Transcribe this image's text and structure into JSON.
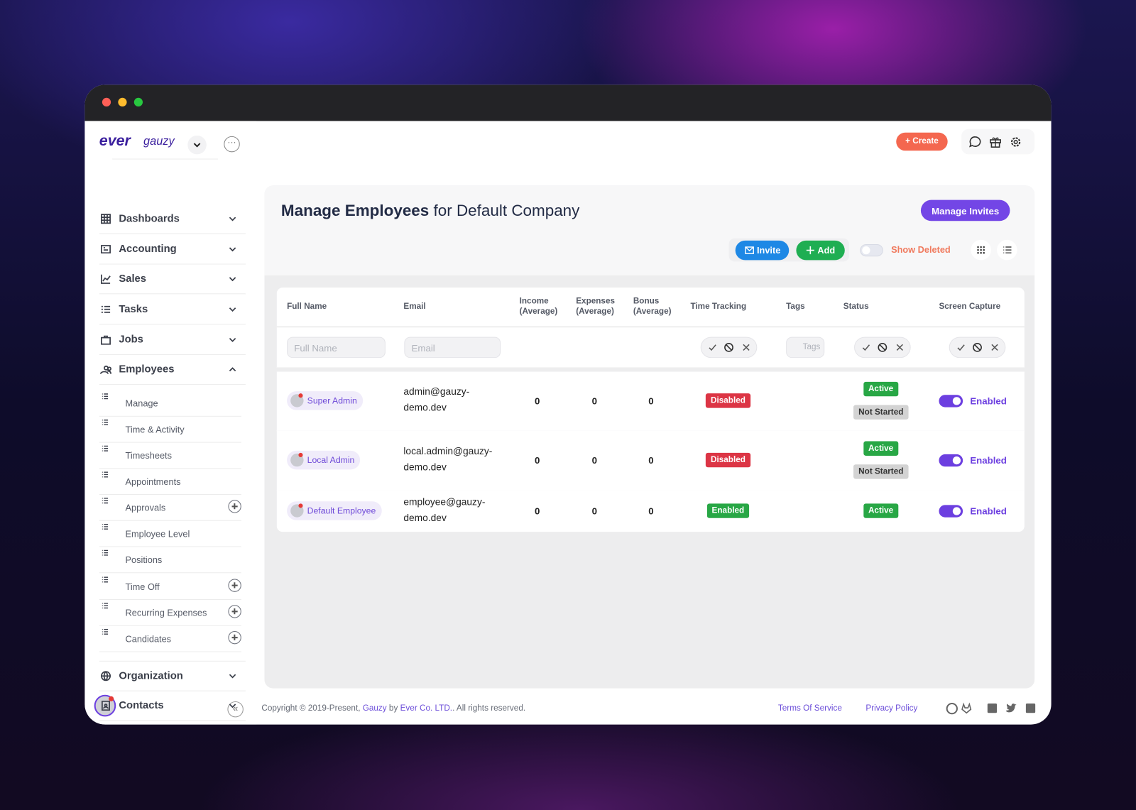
{
  "brand": {
    "name": "ever",
    "suffix": "gauzy"
  },
  "header": {
    "create": "+ Create"
  },
  "sidebar": {
    "top": [
      "Dashboards",
      "Accounting",
      "Sales",
      "Tasks",
      "Jobs",
      "Employees"
    ],
    "submenu": [
      {
        "label": "Manage",
        "add": false
      },
      {
        "label": "Time & Activity",
        "add": false
      },
      {
        "label": "Timesheets",
        "add": false
      },
      {
        "label": "Appointments",
        "add": false
      },
      {
        "label": "Approvals",
        "add": true
      },
      {
        "label": "Employee Level",
        "add": false
      },
      {
        "label": "Positions",
        "add": false
      },
      {
        "label": "Time Off",
        "add": true
      },
      {
        "label": "Recurring Expenses",
        "add": true
      },
      {
        "label": "Candidates",
        "add": true
      }
    ],
    "bottom": [
      "Organization",
      "Contacts"
    ]
  },
  "page": {
    "title_bold": "Manage Employees",
    "title_rest": "for Default Company",
    "manage_invites": "Manage Invites",
    "invite": "Invite",
    "add": "Add",
    "show_deleted": "Show Deleted"
  },
  "table": {
    "columns": [
      "Full Name",
      "Email",
      "Income (Average)",
      "Expenses (Average)",
      "Bonus (Average)",
      "Time Tracking",
      "Tags",
      "Status",
      "Screen Capture"
    ],
    "filters": {
      "full_name": "Full Name",
      "email": "Email",
      "tags": "Tags"
    },
    "rows": [
      {
        "name": "Super Admin",
        "email": "admin@gauzy-demo.dev",
        "income": 0,
        "expenses": 0,
        "bonus": 0,
        "time_tracking": {
          "label": "Disabled",
          "color": "#dc3545"
        },
        "status": [
          {
            "label": "Active",
            "color": "#28a745"
          },
          {
            "label": "Not Started",
            "color": "#d3d3d3"
          }
        ],
        "screen_capture": "Enabled"
      },
      {
        "name": "Local Admin",
        "email": "local.admin@gauzy-demo.dev",
        "income": 0,
        "expenses": 0,
        "bonus": 0,
        "time_tracking": {
          "label": "Disabled",
          "color": "#dc3545"
        },
        "status": [
          {
            "label": "Active",
            "color": "#28a745"
          },
          {
            "label": "Not Started",
            "color": "#d3d3d3"
          }
        ],
        "screen_capture": "Enabled"
      },
      {
        "name": "Default Employee",
        "email": "employee@gauzy-demo.dev",
        "income": 0,
        "expenses": 0,
        "bonus": 0,
        "time_tracking": {
          "label": "Enabled",
          "color": "#28a745"
        },
        "status": [
          {
            "label": "Active",
            "color": "#28a745"
          }
        ],
        "screen_capture": "Enabled"
      }
    ]
  },
  "footer": {
    "copyright": "Copyright © 2019-Present, ",
    "gauzy": "Gauzy",
    "by": " by ",
    "company": "Ever Co. LTD.",
    "rights": ". All rights reserved.",
    "terms": "Terms Of Service",
    "privacy": "Privacy Policy"
  }
}
